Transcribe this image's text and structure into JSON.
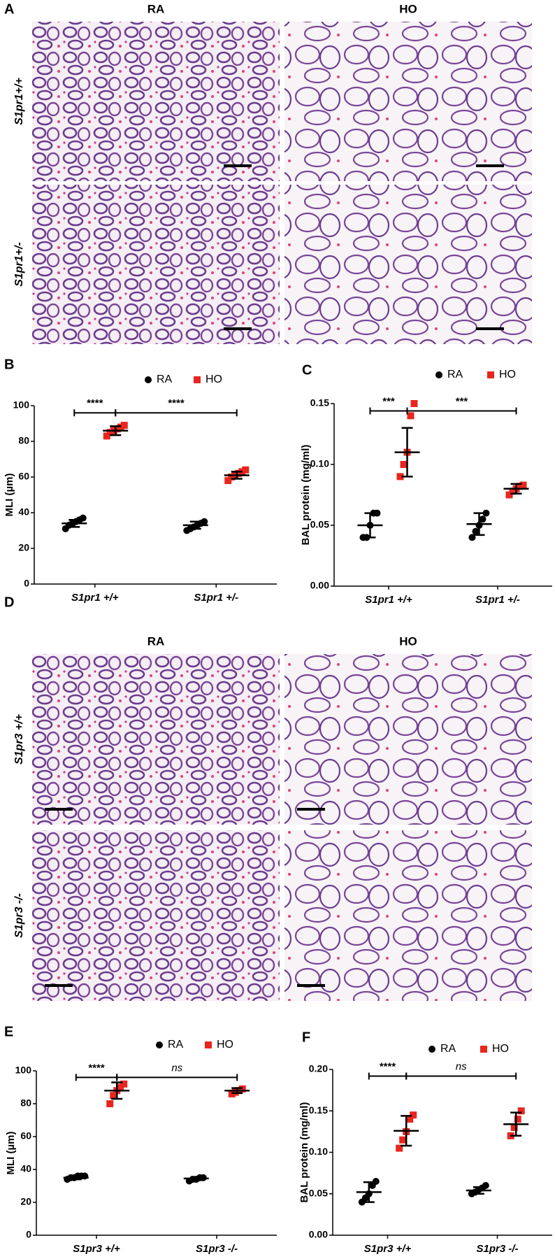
{
  "micrographs": [
    {
      "panel": "A",
      "columns": [
        "RA",
        "HO"
      ],
      "rows": [
        "S1pr1+/+",
        "S1pr1+/-"
      ]
    },
    {
      "panel": "D",
      "columns": [
        "RA",
        "HO"
      ],
      "rows": [
        "S1pr3 +/+",
        "S1pr3 -/-"
      ]
    }
  ],
  "chart_data": [
    {
      "type": "dotplot",
      "panel": "B",
      "ylabel": "MLI (µm)",
      "categories": [
        "S1pr1 +/+",
        "S1pr1 +/-"
      ],
      "ylim": [
        0,
        100
      ],
      "yticks": [
        0,
        20,
        40,
        60,
        80,
        100
      ],
      "legend": "top",
      "series": [
        {
          "name": "RA",
          "color": "#000000",
          "marker": "circle",
          "values": [
            [
              31,
              33,
              34,
              35,
              36,
              37
            ],
            [
              30,
              31,
              32,
              33,
              34,
              35
            ]
          ],
          "mean": [
            34,
            33
          ],
          "sd": [
            2,
            2
          ]
        },
        {
          "name": "HO",
          "color": "#e8261e",
          "marker": "square",
          "values": [
            [
              83,
              85,
              86,
              87,
              88,
              89
            ],
            [
              58,
              60,
              61,
              62,
              63,
              64
            ]
          ],
          "mean": [
            86,
            61
          ],
          "sd": [
            2.5,
            2
          ]
        }
      ],
      "annotations": [
        "****",
        "****"
      ]
    },
    {
      "type": "dotplot",
      "panel": "C",
      "ylabel": "BAL protein (mg/ml)",
      "categories": [
        "S1pr1 +/+",
        "S1pr1 +/-"
      ],
      "ylim": [
        0,
        0.15
      ],
      "yticks": [
        {
          "value": 0,
          "label": "0.00"
        },
        0.05,
        {
          "value": 0.1,
          "label": "0.10"
        },
        0.15
      ],
      "legend": "top",
      "series": [
        {
          "name": "RA",
          "color": "#000000",
          "marker": "circle",
          "values": [
            [
              0.04,
              0.04,
              0.05,
              0.06,
              0.06
            ],
            [
              0.04,
              0.045,
              0.05,
              0.055,
              0.06
            ]
          ],
          "mean": [
            0.05,
            0.051
          ],
          "sd": [
            0.01,
            0.009
          ]
        },
        {
          "name": "HO",
          "color": "#e8261e",
          "marker": "square",
          "values": [
            [
              0.09,
              0.1,
              0.11,
              0.14,
              0.15
            ],
            [
              0.075,
              0.078,
              0.08,
              0.082,
              0.083
            ]
          ],
          "mean": [
            0.11,
            0.08
          ],
          "sd": [
            0.02,
            0.004
          ]
        }
      ],
      "annotations": [
        "***",
        "***"
      ]
    },
    {
      "type": "dotplot",
      "panel": "E",
      "ylabel": "MLI (µm)",
      "categories": [
        "S1pr3 +/+",
        "S1pr3 -/-"
      ],
      "ylim": [
        0,
        100
      ],
      "yticks": [
        0,
        20,
        40,
        60,
        80,
        100
      ],
      "legend": "top",
      "series": [
        {
          "name": "RA",
          "color": "#000000",
          "marker": "circle",
          "values": [
            [
              34,
              35,
              35,
              36,
              36,
              36
            ],
            [
              33,
              34,
              34,
              35,
              35
            ]
          ],
          "mean": [
            35,
            34.5
          ],
          "sd": [
            1,
            1
          ]
        },
        {
          "name": "HO",
          "color": "#e8261e",
          "marker": "square",
          "values": [
            [
              80,
              85,
              88,
              90,
              92
            ],
            [
              86,
              87,
              88,
              89
            ]
          ],
          "mean": [
            88,
            88
          ],
          "sd": [
            5,
            1.5
          ]
        }
      ],
      "annotations": [
        "****",
        "ns"
      ]
    },
    {
      "type": "dotplot",
      "panel": "F",
      "ylabel": "BAL protein (mg/ml)",
      "categories": [
        "S1pr3 +/+",
        "S1pr3 -/-"
      ],
      "ylim": [
        0,
        0.2
      ],
      "yticks": [
        {
          "value": 0,
          "label": "0.00"
        },
        0.05,
        {
          "value": 0.1,
          "label": "0.10"
        },
        0.15,
        {
          "value": 0.2,
          "label": "0.20"
        }
      ],
      "legend": "top",
      "series": [
        {
          "name": "RA",
          "color": "#000000",
          "marker": "circle",
          "values": [
            [
              0.04,
              0.045,
              0.05,
              0.06,
              0.065
            ],
            [
              0.05,
              0.052,
              0.055,
              0.057,
              0.06
            ]
          ],
          "mean": [
            0.052,
            0.054
          ],
          "sd": [
            0.012,
            0.004
          ]
        },
        {
          "name": "HO",
          "color": "#e8261e",
          "marker": "square",
          "values": [
            [
              0.105,
              0.115,
              0.125,
              0.14,
              0.145
            ],
            [
              0.12,
              0.13,
              0.14,
              0.15
            ]
          ],
          "mean": [
            0.126,
            0.134
          ],
          "sd": [
            0.018,
            0.014
          ]
        }
      ],
      "annotations": [
        "****",
        "ns"
      ]
    }
  ]
}
